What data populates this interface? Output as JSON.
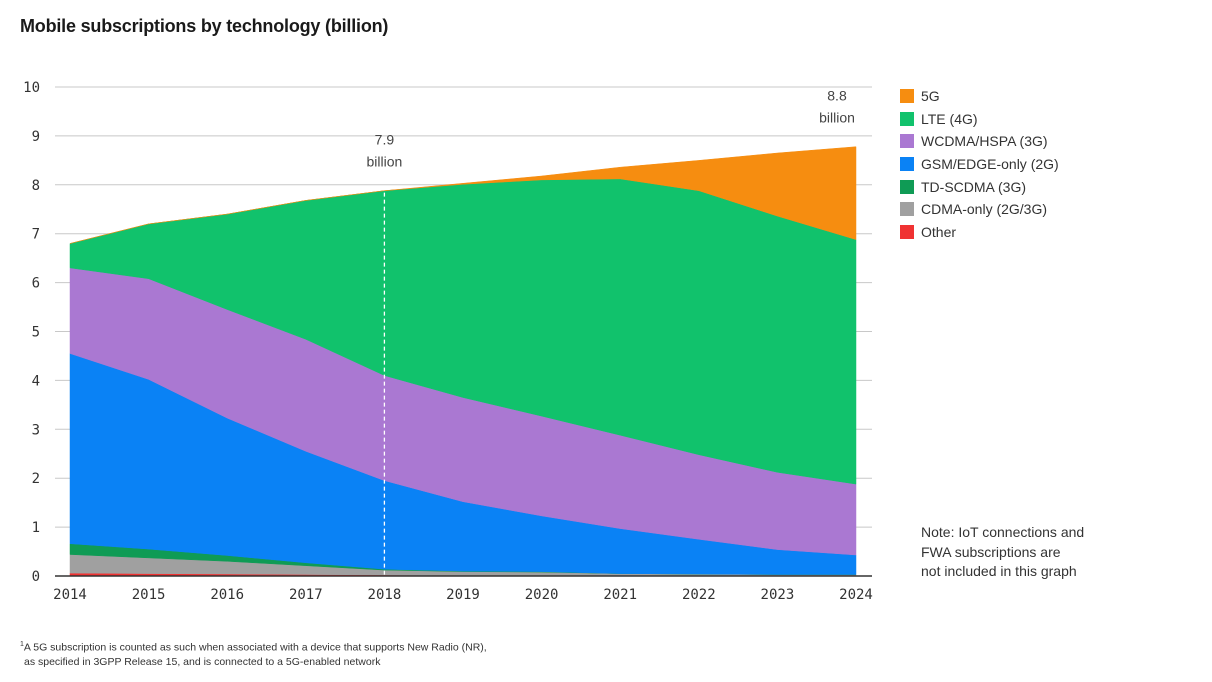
{
  "chart_data": {
    "type": "area",
    "stacked": true,
    "title": "Mobile subscriptions by technology (billion)",
    "xlabel": "",
    "ylabel": "",
    "x": [
      2014,
      2015,
      2016,
      2017,
      2018,
      2019,
      2020,
      2021,
      2022,
      2023,
      2024
    ],
    "x_tick_labels": [
      "2014",
      "2015",
      "2016",
      "2017",
      "2018",
      "2019",
      "2020",
      "2021",
      "2022",
      "2023",
      "2024"
    ],
    "ylim": [
      0,
      10
    ],
    "y_tick_labels": [
      "0",
      "1",
      "2",
      "3",
      "4",
      "5",
      "6",
      "7",
      "8",
      "9",
      "10"
    ],
    "grid": "horizontal",
    "legend_position": "right",
    "series": [
      {
        "name": "Other",
        "color": "#f03232",
        "values": [
          0.06,
          0.05,
          0.04,
          0.03,
          0.02,
          0.01,
          0.01,
          0.01,
          0.01,
          0.01,
          0.01
        ]
      },
      {
        "name": "CDMA-only (2G/3G)",
        "color": "#a0a0a0",
        "values": [
          0.38,
          0.32,
          0.26,
          0.18,
          0.1,
          0.08,
          0.07,
          0.04,
          0.03,
          0.02,
          0.02
        ]
      },
      {
        "name": "TD-SCDMA (3G)",
        "color": "#0f9b55",
        "values": [
          0.22,
          0.18,
          0.12,
          0.06,
          0.02,
          0.01,
          0.01,
          0.0,
          0.0,
          0.0,
          0.0
        ]
      },
      {
        "name": "GSM/EDGE-only (2G)",
        "color": "#0a82f5",
        "values": [
          3.89,
          3.47,
          2.81,
          2.28,
          1.81,
          1.42,
          1.14,
          0.92,
          0.71,
          0.51,
          0.4
        ]
      },
      {
        "name": "WCDMA/HSPA (3G)",
        "color": "#aa78d2",
        "values": [
          1.75,
          2.06,
          2.22,
          2.29,
          2.15,
          2.13,
          2.04,
          1.91,
          1.73,
          1.58,
          1.45
        ]
      },
      {
        "name": "LTE (4G)",
        "color": "#11c26c",
        "values": [
          0.5,
          1.12,
          1.95,
          2.84,
          3.78,
          4.36,
          4.83,
          5.24,
          5.4,
          5.24,
          5.0
        ]
      },
      {
        "name": "5G",
        "color": "#f68d10",
        "values": [
          0.0,
          0.0,
          0.0,
          0.0,
          0.0,
          0.02,
          0.08,
          0.24,
          0.62,
          1.29,
          1.9
        ]
      }
    ],
    "annotations": [
      {
        "x": 2018,
        "value_text": "7.9",
        "unit_text": "billion",
        "dashed_line": true
      },
      {
        "x": 2024,
        "value_text": "8.8",
        "unit_text": "billion",
        "dashed_line": false
      }
    ]
  },
  "legend_order": [
    "5G",
    "LTE (4G)",
    "WCDMA/HSPA (3G)",
    "GSM/EDGE-only (2G)",
    "TD-SCDMA (3G)",
    "CDMA-only (2G/3G)",
    "Other"
  ],
  "note": {
    "lines": [
      "Note: IoT connections and",
      "FWA subscriptions are",
      "not included in this graph"
    ]
  },
  "footnote": {
    "marker": "1",
    "line1": "A 5G subscription is counted as such when associated with a device that supports New Radio (NR),",
    "line2": "as specified in 3GPP Release 15, and is connected to a 5G-enabled network"
  }
}
